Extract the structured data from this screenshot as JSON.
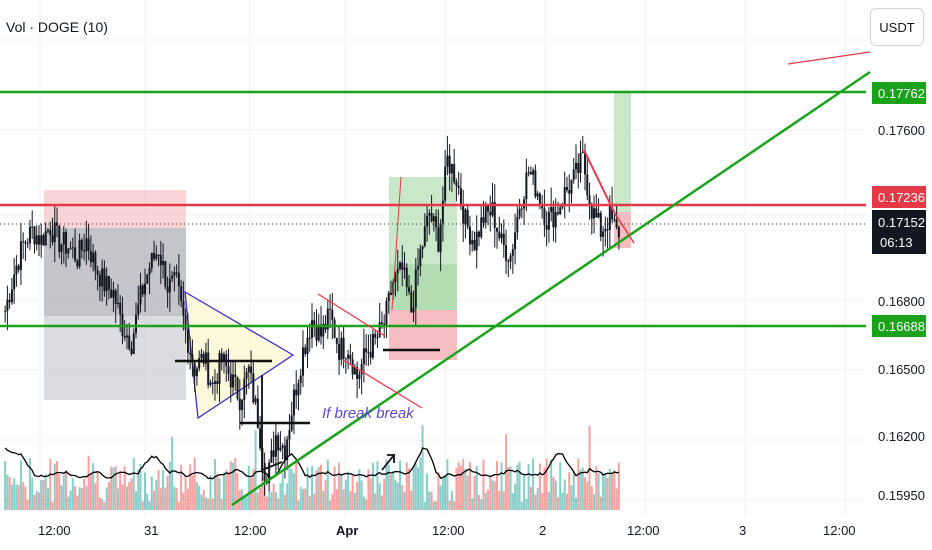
{
  "header": {
    "indicator_title": "Vol · DOGE (10)",
    "currency_button": "USDT"
  },
  "colors": {
    "bull": "#26a69a",
    "bear": "#ef5350",
    "candle": "#131722",
    "support": "#1aa31a",
    "resistance": "#e53948",
    "price_tag": "#131722"
  },
  "annotation": {
    "text": "If break break",
    "color": "#5b4bc4"
  },
  "price_tags": {
    "top_level": "0.17762",
    "resistance": "0.17236",
    "current_price": "0.17152",
    "countdown": "06:13",
    "support": "0.16688"
  },
  "chart_data": {
    "type": "candlestick",
    "y_axis_ticks": [
      "0.17600",
      "0.16800",
      "0.16500",
      "0.16200",
      "0.15950"
    ],
    "x_axis_ticks": [
      "12:00",
      "31",
      "12:00",
      "Apr",
      "12:00",
      "2",
      "12:00",
      "3",
      "12:00"
    ],
    "ylim": [
      0.159,
      0.1795
    ],
    "horizontal_levels": [
      0.17762,
      0.17236,
      0.16688
    ],
    "last_price": 0.17152,
    "close_series": [
      0.1682,
      0.1699,
      0.1712,
      0.1718,
      0.1714,
      0.172,
      0.1713,
      0.1711,
      0.1706,
      0.1714,
      0.1702,
      0.1694,
      0.169,
      0.1675,
      0.1668,
      0.1688,
      0.1702,
      0.171,
      0.1693,
      0.1694,
      0.1673,
      0.1656,
      0.1661,
      0.1648,
      0.166,
      0.1652,
      0.1643,
      0.1655,
      0.1633,
      0.1604,
      0.1626,
      0.162,
      0.1643,
      0.1664,
      0.1678,
      0.1671,
      0.168,
      0.1665,
      0.1666,
      0.1652,
      0.1663,
      0.1668,
      0.1676,
      0.1695,
      0.17,
      0.1682,
      0.1708,
      0.1726,
      0.1714,
      0.175,
      0.1742,
      0.1722,
      0.1713,
      0.1724,
      0.1727,
      0.1712,
      0.1707,
      0.173,
      0.1745,
      0.1736,
      0.1723,
      0.1726,
      0.1735,
      0.1741,
      0.175,
      0.1728,
      0.1718,
      0.1724,
      0.1715
    ]
  }
}
